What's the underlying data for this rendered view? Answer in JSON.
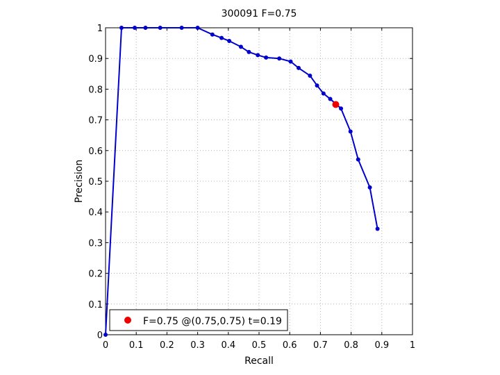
{
  "chart_data": {
    "type": "line",
    "title": "300091 F=0.75",
    "xlabel": "Recall",
    "ylabel": "Precision",
    "xlim": [
      0,
      1
    ],
    "ylim": [
      0,
      1
    ],
    "xticks": [
      "0",
      "0.1",
      "0.2",
      "0.3",
      "0.4",
      "0.5",
      "0.6",
      "0.7",
      "0.8",
      "0.9",
      "1"
    ],
    "yticks": [
      "0",
      "0.1",
      "0.2",
      "0.3",
      "0.4",
      "0.5",
      "0.6",
      "0.7",
      "0.8",
      "0.9",
      "1"
    ],
    "grid": true,
    "legend_position": "bottom-left",
    "series": [
      {
        "color": "#0000cc",
        "points": [
          [
            0.0,
            0.0
          ],
          [
            0.052,
            1.0
          ],
          [
            0.095,
            1.0
          ],
          [
            0.13,
            1.0
          ],
          [
            0.178,
            1.0
          ],
          [
            0.248,
            1.0
          ],
          [
            0.3,
            1.0
          ],
          [
            0.348,
            0.978
          ],
          [
            0.378,
            0.967
          ],
          [
            0.403,
            0.957
          ],
          [
            0.441,
            0.938
          ],
          [
            0.467,
            0.921
          ],
          [
            0.496,
            0.911
          ],
          [
            0.523,
            0.903
          ],
          [
            0.566,
            0.9
          ],
          [
            0.603,
            0.89
          ],
          [
            0.629,
            0.869
          ],
          [
            0.666,
            0.844
          ],
          [
            0.689,
            0.812
          ],
          [
            0.71,
            0.786
          ],
          [
            0.732,
            0.768
          ],
          [
            0.767,
            0.737
          ],
          [
            0.798,
            0.662
          ],
          [
            0.823,
            0.571
          ],
          [
            0.861,
            0.48
          ],
          [
            0.886,
            0.345
          ]
        ]
      }
    ],
    "highlight": {
      "x": 0.75,
      "y": 0.75,
      "color": "#ee0000",
      "label": "F=0.75 @(0.75,0.75) t=0.19"
    }
  }
}
